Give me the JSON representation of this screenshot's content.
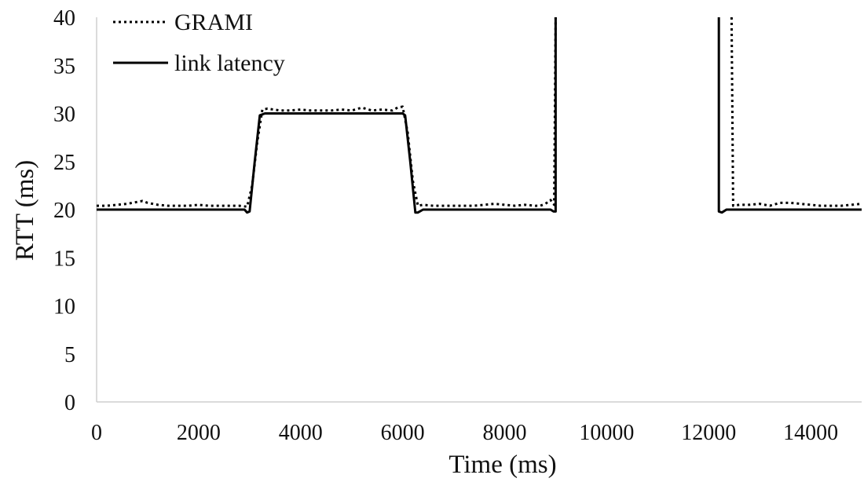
{
  "chart_data": {
    "type": "line",
    "xlabel": "Time (ms)",
    "ylabel": "RTT (ms)",
    "xlim": [
      0,
      15000
    ],
    "ylim": [
      0,
      40
    ],
    "x_ticks": [
      0,
      2000,
      4000,
      6000,
      8000,
      10000,
      12000,
      14000
    ],
    "y_ticks": [
      0,
      5,
      10,
      15,
      20,
      25,
      30,
      35,
      40
    ],
    "grid": false,
    "legend": "top-left",
    "series": [
      {
        "name": "GRAMI",
        "style": "dotted",
        "color": "#000000",
        "segments": [
          [
            [
              0,
              20.4
            ],
            [
              200,
              20.4
            ],
            [
              400,
              20.5
            ],
            [
              600,
              20.6
            ],
            [
              800,
              20.8
            ],
            [
              900,
              20.9
            ],
            [
              1000,
              20.7
            ],
            [
              1200,
              20.5
            ],
            [
              1400,
              20.4
            ],
            [
              1600,
              20.4
            ],
            [
              1800,
              20.4
            ],
            [
              2000,
              20.5
            ],
            [
              2200,
              20.4
            ],
            [
              2400,
              20.4
            ],
            [
              2600,
              20.4
            ],
            [
              2800,
              20.4
            ],
            [
              2950,
              20.3
            ],
            [
              3050,
              22.5
            ],
            [
              3150,
              27
            ],
            [
              3250,
              30.4
            ],
            [
              3350,
              30.5
            ],
            [
              3600,
              30.3
            ],
            [
              3800,
              30.3
            ],
            [
              4000,
              30.4
            ],
            [
              4200,
              30.3
            ],
            [
              4400,
              30.3
            ],
            [
              4600,
              30.3
            ],
            [
              4800,
              30.4
            ],
            [
              5000,
              30.3
            ],
            [
              5200,
              30.6
            ],
            [
              5400,
              30.3
            ],
            [
              5600,
              30.4
            ],
            [
              5800,
              30.3
            ],
            [
              5900,
              30.6
            ],
            [
              6000,
              30.7
            ],
            [
              6100,
              28
            ],
            [
              6200,
              23
            ],
            [
              6300,
              20.4
            ],
            [
              6400,
              20.5
            ],
            [
              6600,
              20.4
            ],
            [
              6800,
              20.4
            ],
            [
              7000,
              20.4
            ],
            [
              7200,
              20.4
            ],
            [
              7400,
              20.4
            ],
            [
              7600,
              20.5
            ],
            [
              7800,
              20.6
            ],
            [
              8000,
              20.5
            ],
            [
              8200,
              20.4
            ],
            [
              8400,
              20.5
            ],
            [
              8600,
              20.4
            ],
            [
              8700,
              20.4
            ],
            [
              8800,
              20.6
            ],
            [
              8900,
              21
            ],
            [
              8970,
              20.5
            ],
            [
              9000,
              40
            ]
          ],
          [
            [
              12450,
              40
            ],
            [
              12480,
              20.4
            ],
            [
              12600,
              20.5
            ],
            [
              12800,
              20.5
            ],
            [
              13000,
              20.6
            ],
            [
              13200,
              20.4
            ],
            [
              13400,
              20.7
            ],
            [
              13600,
              20.7
            ],
            [
              13800,
              20.6
            ],
            [
              14000,
              20.5
            ],
            [
              14200,
              20.4
            ],
            [
              14400,
              20.4
            ],
            [
              14600,
              20.4
            ],
            [
              14800,
              20.5
            ],
            [
              15000,
              20.6
            ]
          ]
        ]
      },
      {
        "name": "link latency",
        "style": "solid",
        "color": "#000000",
        "segments": [
          [
            [
              0,
              20
            ],
            [
              2900,
              20
            ],
            [
              2950,
              19.7
            ],
            [
              3000,
              19.8
            ],
            [
              3100,
              25
            ],
            [
              3200,
              29.8
            ],
            [
              3300,
              30
            ],
            [
              6000,
              30
            ],
            [
              6050,
              29.8
            ],
            [
              6150,
              25
            ],
            [
              6250,
              19.7
            ],
            [
              6300,
              19.7
            ],
            [
              6400,
              20
            ],
            [
              8900,
              20
            ],
            [
              8960,
              19.8
            ],
            [
              9000,
              19.8
            ],
            [
              9000,
              40
            ]
          ],
          [
            [
              12200,
              40
            ],
            [
              12200,
              19.8
            ],
            [
              12260,
              19.7
            ],
            [
              12350,
              20
            ],
            [
              15000,
              20
            ]
          ]
        ]
      }
    ]
  }
}
